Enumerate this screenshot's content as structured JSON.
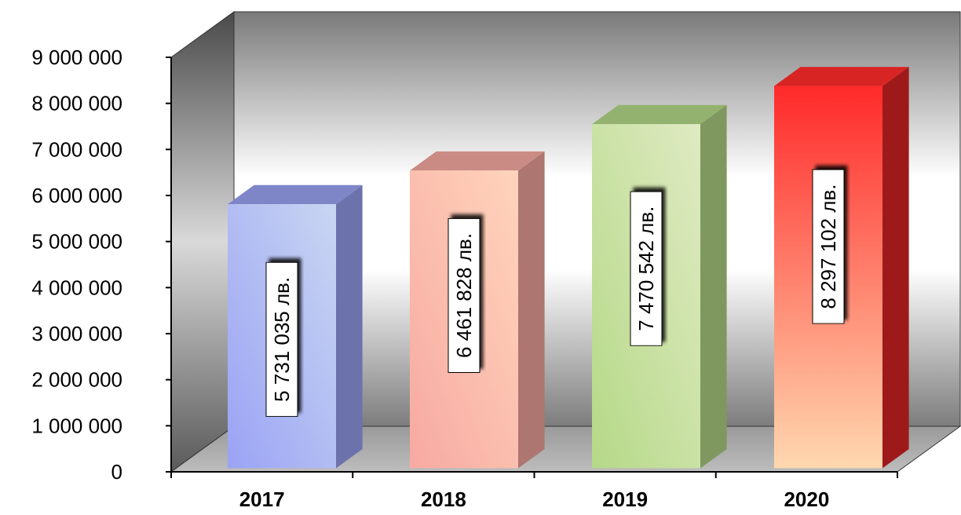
{
  "chart_data": {
    "type": "bar",
    "title": "",
    "xlabel": "",
    "ylabel": "",
    "categories": [
      "2017",
      "2018",
      "2019",
      "2020"
    ],
    "values": [
      5731035,
      6461828,
      7470542,
      8297102
    ],
    "data_labels": [
      "5 731 035 лв.",
      "6 461 828 лв.",
      "7 470 542 лв.",
      "8 297 102 лв."
    ],
    "ylim": [
      0,
      9000000
    ],
    "yticks": [
      0,
      1000000,
      2000000,
      3000000,
      4000000,
      5000000,
      6000000,
      7000000,
      8000000,
      9000000
    ],
    "ytick_labels": [
      "0",
      "1 000 000",
      "2 000 000",
      "3 000 000",
      "4 000 000",
      "5 000 000",
      "6 000 000",
      "7 000 000",
      "8 000 000",
      "9 000 000"
    ],
    "grid": false,
    "style": "3d-columns",
    "colors": {
      "bars": [
        "#9aa3f4",
        "#f7a9a2",
        "#b5d987",
        "#ff2a2a"
      ],
      "bar_tops": [
        "#c9d6f2",
        "#ffd4bb",
        "#dfeac2",
        "#ffd8b0"
      ]
    }
  }
}
